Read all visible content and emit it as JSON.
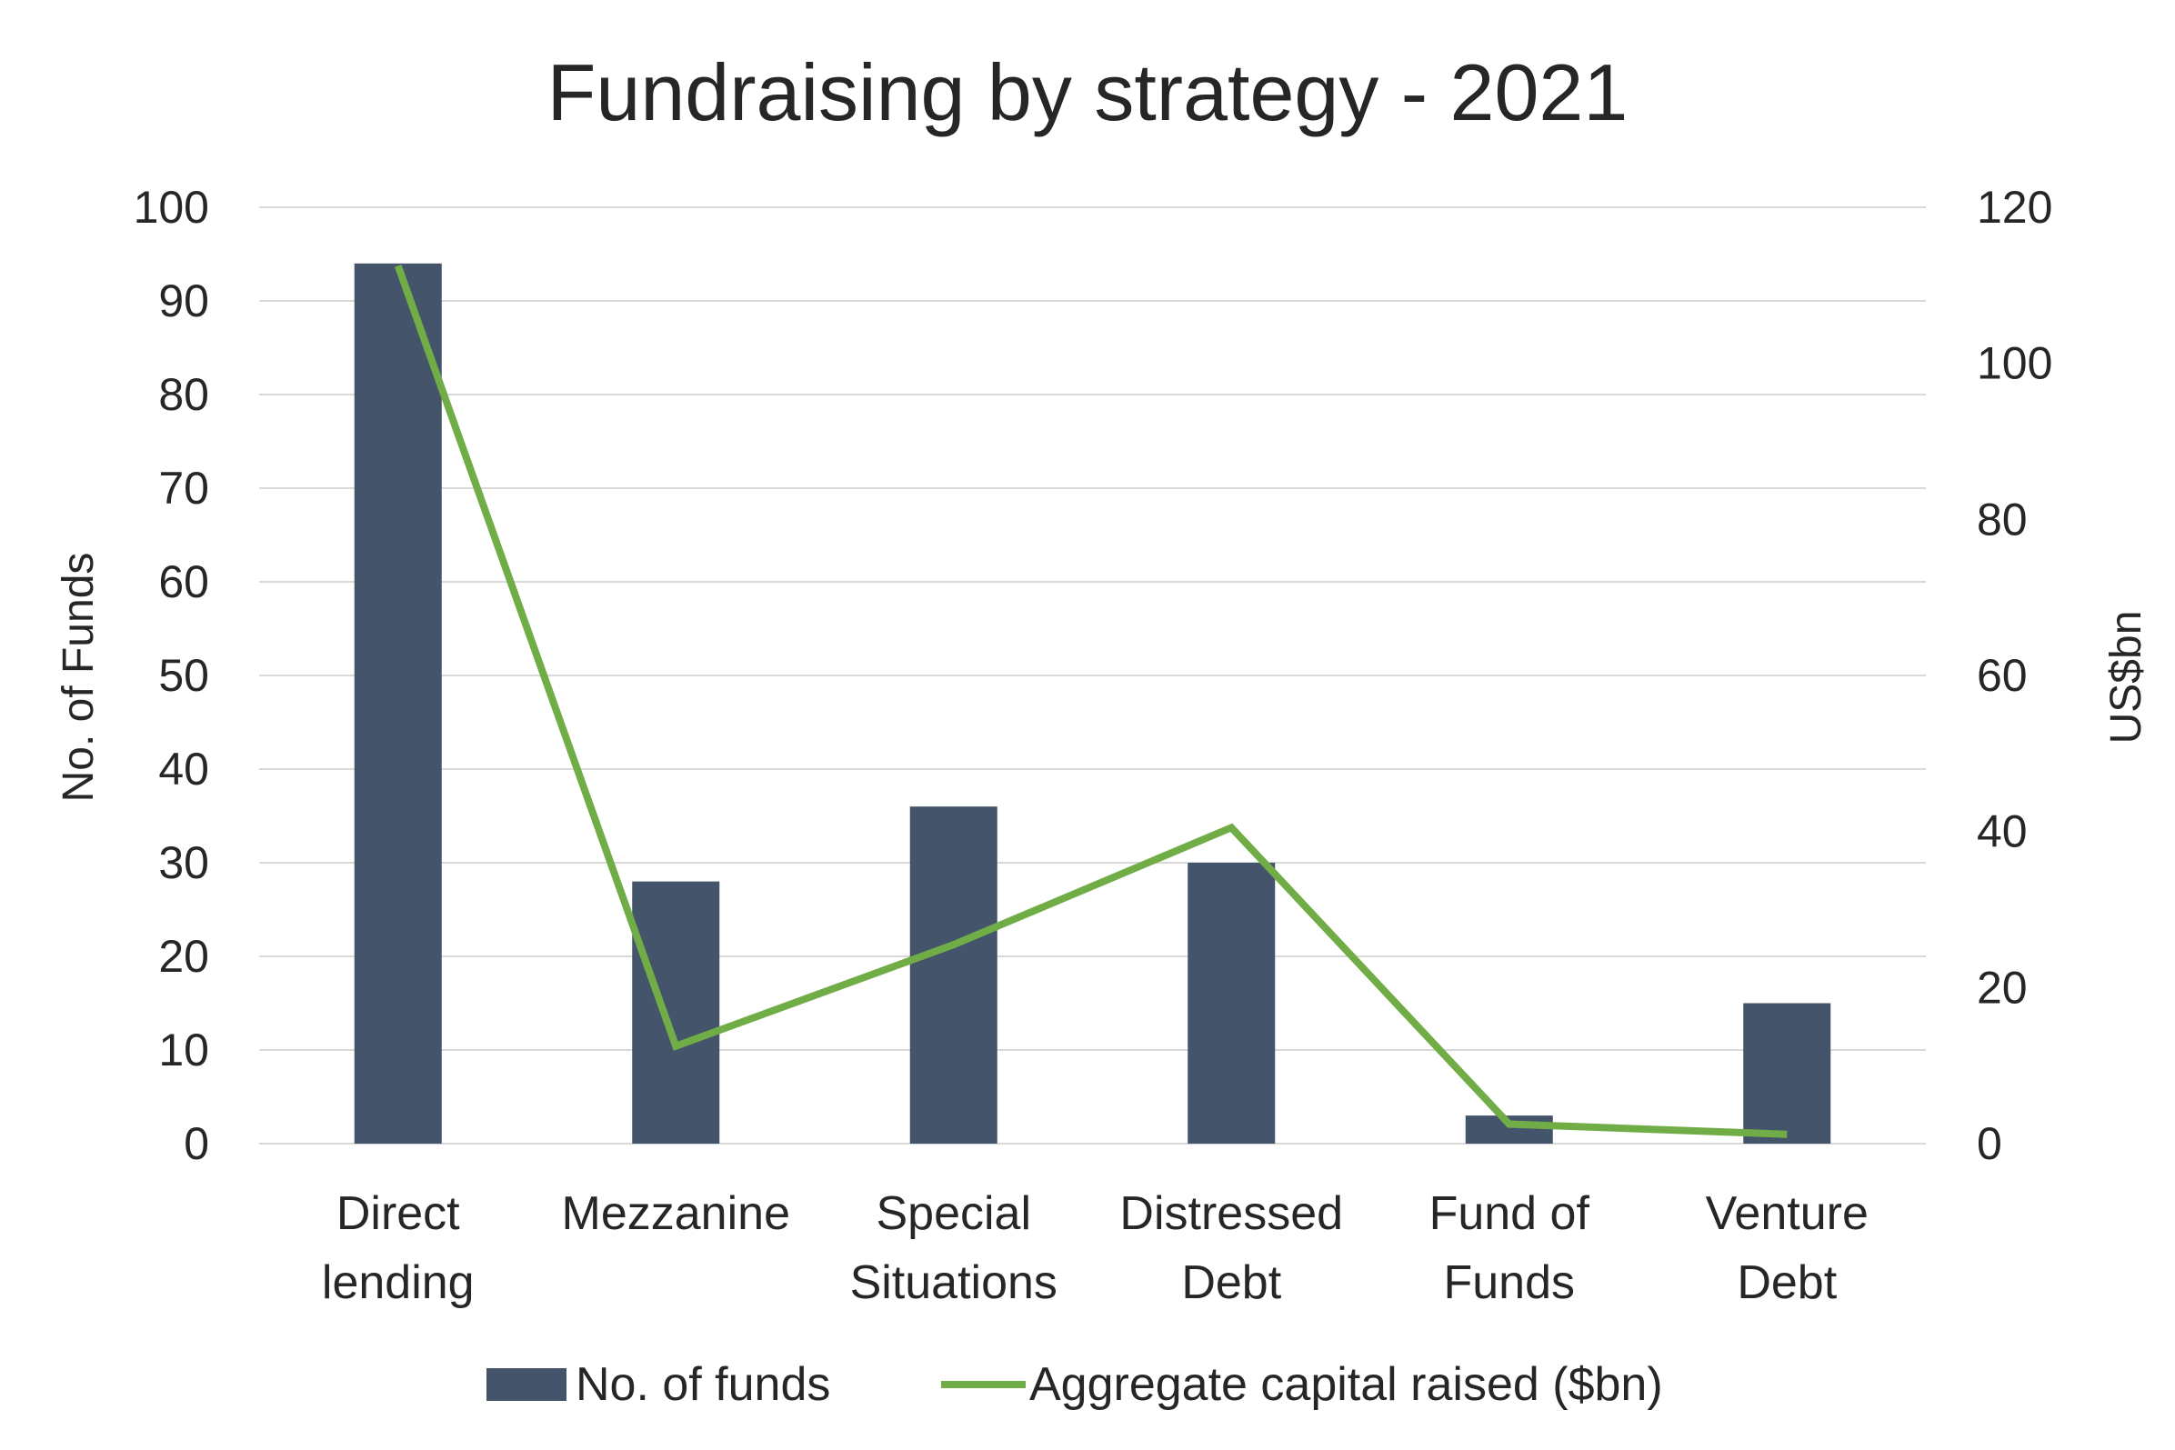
{
  "chart_data": {
    "type": "bar",
    "title": "Fundraising by strategy - 2021",
    "categories": [
      [
        "Direct",
        "lending"
      ],
      [
        "Mezzanine"
      ],
      [
        "Special",
        "Situations"
      ],
      [
        "Distressed",
        "Debt"
      ],
      [
        "Fund of",
        "Funds"
      ],
      [
        "Venture",
        "Debt"
      ]
    ],
    "series": [
      {
        "name": "No. of funds",
        "kind": "bar",
        "axis": "left",
        "color": "#44546a",
        "values": [
          94,
          28,
          36,
          30,
          3,
          15
        ]
      },
      {
        "name": "Aggregate capital raised ($bn)",
        "kind": "line",
        "axis": "right",
        "color": "#70ad47",
        "values": [
          112.5,
          12.5,
          25.5,
          40.5,
          2.5,
          1.2
        ]
      }
    ],
    "ylabel": "No. of Funds",
    "ylabel_right": "US$bn",
    "ylim": [
      0,
      100
    ],
    "ylim_right": [
      0,
      120
    ],
    "yticks": [
      0,
      10,
      20,
      30,
      40,
      50,
      60,
      70,
      80,
      90,
      100
    ],
    "yticks_right": [
      0,
      20,
      40,
      60,
      80,
      100,
      120
    ],
    "grid": true,
    "legend_position": "bottom"
  }
}
